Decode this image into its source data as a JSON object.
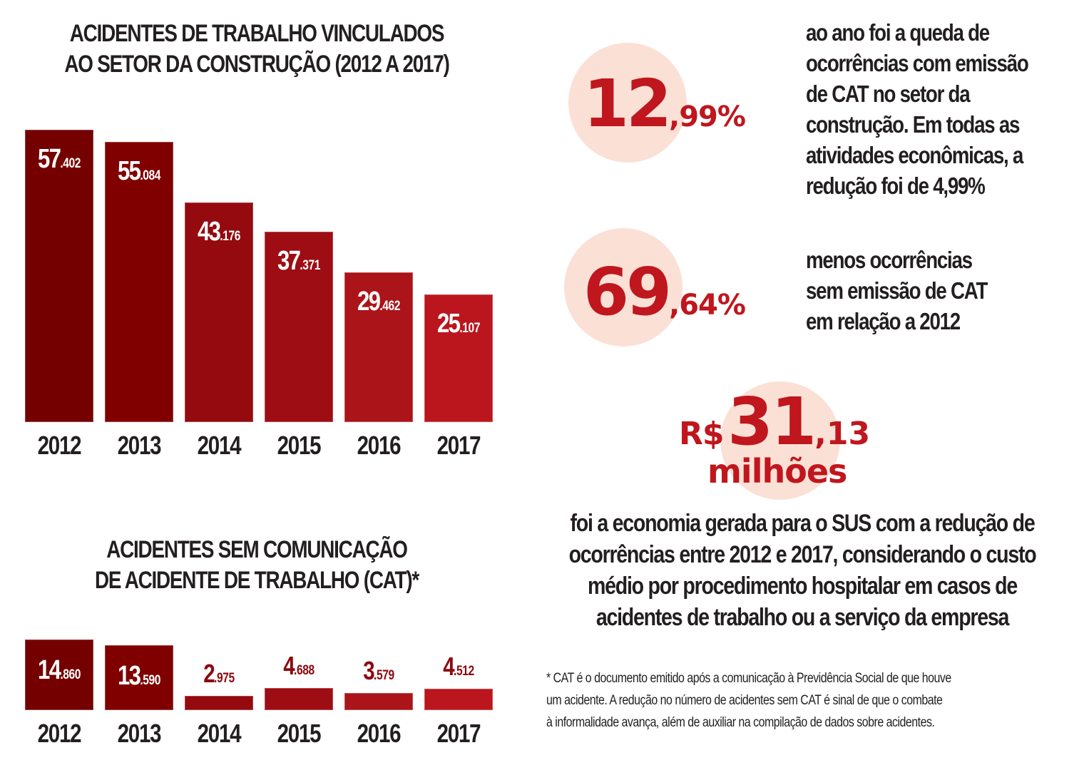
{
  "colors": {
    "bar_shades": [
      "#750000",
      "#800000",
      "#940a0f",
      "#9e0d14",
      "#ab1419",
      "#bb161d"
    ],
    "accent": "#c0161d",
    "circle": "#fbe0d6",
    "text": "#231f20"
  },
  "chart_data": [
    {
      "type": "bar",
      "title": "ACIDENTES DE TRABALHO VINCULADOS AO SETOR DA CONSTRUÇÃO (2012 A 2017)",
      "title_lines": [
        "ACIDENTES DE TRABALHO VINCULADOS",
        "AO SETOR DA CONSTRUÇÃO (2012 A 2017)"
      ],
      "categories": [
        "2012",
        "2013",
        "2014",
        "2015",
        "2016",
        "2017"
      ],
      "values": [
        57402,
        55084,
        43176,
        37371,
        29462,
        25107
      ],
      "labels": [
        {
          "major": "57",
          "minor": ".402"
        },
        {
          "major": "55",
          "minor": ".084"
        },
        {
          "major": "43",
          "minor": ".176"
        },
        {
          "major": "37",
          "minor": ".371"
        },
        {
          "major": "29",
          "minor": ".462"
        },
        {
          "major": "25",
          "minor": ".107"
        }
      ],
      "xlabel": "",
      "ylabel": "",
      "ylim": [
        0,
        57402
      ],
      "grid": false
    },
    {
      "type": "bar",
      "title": "ACIDENTES SEM COMUNICAÇÃO DE ACIDENTE DE TRABALHO (CAT)*",
      "title_lines": [
        "ACIDENTES SEM COMUNICAÇÃO",
        "DE ACIDENTE DE TRABALHO (CAT)*"
      ],
      "categories": [
        "2012",
        "2013",
        "2014",
        "2015",
        "2016",
        "2017"
      ],
      "values": [
        14860,
        13590,
        2975,
        4688,
        3579,
        4512
      ],
      "labels": [
        {
          "major": "14",
          "minor": ".860"
        },
        {
          "major": "13",
          "minor": ".590"
        },
        {
          "major": "2",
          "minor": ".975"
        },
        {
          "major": "4",
          "minor": ".688"
        },
        {
          "major": "3",
          "minor": ".579"
        },
        {
          "major": "4",
          "minor": ".512"
        }
      ],
      "xlabel": "",
      "ylabel": "",
      "ylim": [
        0,
        14860
      ],
      "grid": false
    }
  ],
  "stats": {
    "stat1": {
      "big": "12",
      "small": ",99%",
      "text_lines": [
        "ao ano foi a queda de",
        "ocorrências com emissão",
        "de CAT no setor da",
        "construção. Em todas as",
        "atividades econômicas, a",
        "redução foi de 4,99%"
      ]
    },
    "stat2": {
      "big": "69",
      "small": ",64%",
      "text_lines": [
        "menos ocorrências",
        "sem emissão de CAT",
        "em relação a 2012"
      ]
    },
    "stat3": {
      "prefix": "R$",
      "big": "31",
      "small": ",13",
      "unit": "milhões",
      "text_lines": [
        "foi a economia gerada para o SUS com a redução de",
        "ocorrências entre 2012 e 2017, considerando o custo",
        "médio por procedimento hospitalar em casos de",
        "acidentes de trabalho ou a serviço da empresa"
      ]
    }
  },
  "footnote_lines": [
    "* CAT é o documento emitido após a comunicação à Previdência Social de que houve",
    "um acidente. A redução no número de acidentes sem CAT é sinal de que o combate",
    "à informalidade avança, além de auxiliar na compilação de dados sobre acidentes."
  ]
}
